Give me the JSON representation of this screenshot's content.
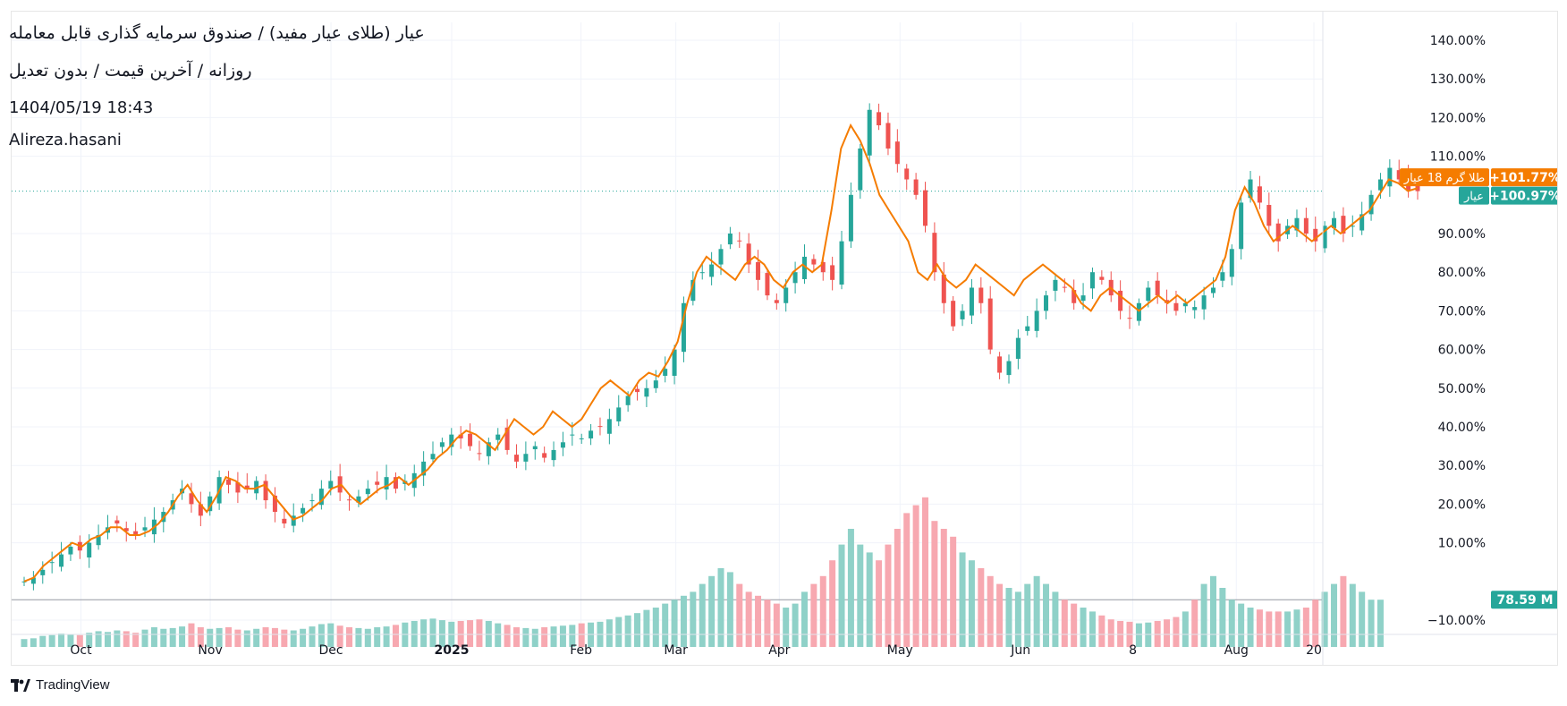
{
  "header": {
    "title": "عیار (طلای عیار مفید) / صندوق سرمایه گذاری قابل معامله",
    "subtitle": "روزانه / آخرین قیمت / بدون تعدیل",
    "datetime": "1404/05/19 18:43",
    "author": "Alireza.hasani"
  },
  "brand": {
    "name": "TradingView"
  },
  "colors": {
    "up": "#26a69a",
    "down": "#ef5350",
    "line": "#f57c00",
    "vol_up": "#8fd1c8",
    "vol_down": "#f7a8b0",
    "grid": "#f0f3fa"
  },
  "chart_data": {
    "type": "candlestick",
    "y_unit": "percent change",
    "ylim": [
      -10,
      140
    ],
    "y_ticks": [
      "140.00%",
      "130.00%",
      "120.00%",
      "110.00%",
      "90.00%",
      "80.00%",
      "70.00%",
      "60.00%",
      "50.00%",
      "40.00%",
      "30.00%",
      "20.00%",
      "10.00%",
      "−10.00%"
    ],
    "y_tick_values": [
      140,
      130,
      120,
      110,
      90,
      80,
      70,
      60,
      50,
      40,
      30,
      20,
      10,
      -10
    ],
    "x_ticks": [
      "Oct",
      "Nov",
      "Dec",
      "2025",
      "Feb",
      "Mar",
      "Apr",
      "May",
      "Jun",
      "8",
      "Aug",
      "20"
    ],
    "x_tick_positions": [
      0.07,
      0.22,
      0.36,
      0.5,
      0.65,
      0.76,
      0.88,
      1.02,
      1.16,
      1.29,
      1.41,
      1.5
    ],
    "series": [
      {
        "name": "عیار",
        "last_label": "+100.97%",
        "last_value": 100.97
      },
      {
        "name": "طلا گرم 18 عیار",
        "last_label": "+101.77%",
        "last_value": 101.77
      }
    ],
    "candles_close": [
      0,
      1,
      3,
      5,
      7,
      9,
      8,
      10,
      12,
      14,
      15,
      13,
      12,
      14,
      16,
      18,
      21,
      24,
      20,
      17,
      22,
      27,
      25,
      23,
      24,
      26,
      21,
      18,
      15,
      17,
      19,
      21,
      24,
      26,
      23,
      21,
      22,
      24,
      25,
      27,
      24,
      26,
      28,
      31,
      33,
      36,
      38,
      37,
      35,
      33,
      36,
      38,
      34,
      31,
      33,
      35,
      32,
      34,
      36,
      38,
      37,
      39,
      40,
      42,
      45,
      48,
      49,
      50,
      52,
      55,
      60,
      72,
      78,
      80,
      82,
      86,
      90,
      88,
      82,
      78,
      74,
      72,
      76,
      80,
      84,
      82,
      80,
      78,
      88,
      100,
      112,
      122,
      118,
      112,
      108,
      104,
      100,
      92,
      80,
      72,
      66,
      70,
      76,
      72,
      60,
      54,
      57,
      63,
      66,
      70,
      74,
      78,
      76,
      72,
      74,
      80,
      78,
      74,
      70,
      68,
      72,
      76,
      74,
      72,
      70,
      72,
      71,
      74,
      76,
      80,
      86,
      98,
      104,
      98,
      92,
      88,
      92,
      94,
      90,
      88,
      92,
      94,
      90,
      92,
      95,
      100,
      104,
      107,
      104,
      101,
      100.97
    ],
    "line_values": [
      0,
      1,
      4,
      6,
      8,
      10,
      9,
      11,
      12,
      14,
      14,
      12,
      12,
      13,
      15,
      18,
      22,
      25,
      21,
      18,
      22,
      27,
      26,
      24,
      24,
      25,
      22,
      19,
      16,
      17,
      19,
      21,
      24,
      25,
      22,
      20,
      22,
      24,
      25,
      27,
      25,
      27,
      29,
      32,
      34,
      37,
      39,
      38,
      36,
      34,
      38,
      42,
      40,
      38,
      40,
      44,
      42,
      40,
      42,
      46,
      50,
      52,
      50,
      48,
      52,
      54,
      53,
      57,
      62,
      72,
      80,
      84,
      82,
      80,
      78,
      82,
      84,
      82,
      78,
      76,
      80,
      82,
      80,
      82,
      96,
      112,
      118,
      114,
      108,
      100,
      96,
      92,
      88,
      80,
      78,
      82,
      78,
      76,
      78,
      82,
      80,
      78,
      76,
      74,
      78,
      80,
      82,
      80,
      78,
      76,
      72,
      70,
      74,
      76,
      74,
      72,
      70,
      72,
      74,
      72,
      74,
      72,
      74,
      76,
      78,
      84,
      96,
      102,
      98,
      92,
      88,
      90,
      92,
      90,
      88,
      90,
      92,
      90,
      92,
      94,
      96,
      100,
      104,
      103,
      101,
      101.77
    ],
    "volume_last": "78.59 M",
    "volume_ratio": [
      0.2,
      0.22,
      0.28,
      0.3,
      0.34,
      0.32,
      0.3,
      0.36,
      0.4,
      0.38,
      0.42,
      0.4,
      0.36,
      0.44,
      0.5,
      0.46,
      0.48,
      0.52,
      0.6,
      0.5,
      0.46,
      0.48,
      0.5,
      0.44,
      0.42,
      0.46,
      0.5,
      0.48,
      0.44,
      0.42,
      0.46,
      0.52,
      0.58,
      0.6,
      0.54,
      0.5,
      0.48,
      0.46,
      0.5,
      0.52,
      0.56,
      0.62,
      0.66,
      0.7,
      0.72,
      0.68,
      0.64,
      0.66,
      0.68,
      0.7,
      0.66,
      0.6,
      0.56,
      0.5,
      0.48,
      0.46,
      0.5,
      0.52,
      0.54,
      0.56,
      0.6,
      0.62,
      0.64,
      0.7,
      0.76,
      0.8,
      0.86,
      0.94,
      1.0,
      1.1,
      1.2,
      1.3,
      1.4,
      1.6,
      1.8,
      2.0,
      1.9,
      1.6,
      1.4,
      1.3,
      1.2,
      1.1,
      1.0,
      1.1,
      1.4,
      1.6,
      1.8,
      2.2,
      2.6,
      3.0,
      2.6,
      2.4,
      2.2,
      2.6,
      3.0,
      3.4,
      3.6,
      3.8,
      3.2,
      3.0,
      2.8,
      2.4,
      2.2,
      2.0,
      1.8,
      1.6,
      1.5,
      1.4,
      1.6,
      1.8,
      1.6,
      1.4,
      1.2,
      1.1,
      1.0,
      0.9,
      0.8,
      0.7,
      0.66,
      0.64,
      0.6,
      0.62,
      0.66,
      0.7,
      0.76,
      0.9,
      1.2,
      1.6,
      1.8,
      1.5,
      1.2,
      1.1,
      1.0,
      0.95,
      0.9,
      0.9,
      0.9,
      0.95,
      1.0,
      1.2,
      1.4,
      1.6,
      1.8,
      1.6,
      1.4,
      1.2,
      1.2
    ],
    "grid": true
  }
}
